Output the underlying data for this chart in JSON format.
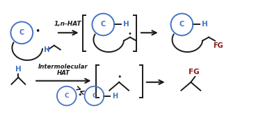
{
  "bg_color": "#ffffff",
  "blue": "#4472C4",
  "dark_red": "#8B1A1A",
  "black": "#1a1a1a",
  "fig_width": 3.78,
  "fig_height": 1.69,
  "dpi": 100,
  "label_1n_hat": "1,n-HAT",
  "label_inter": "Intermolecular\nHAT",
  "label_C": "C",
  "label_H": "H",
  "label_FG": "FG"
}
